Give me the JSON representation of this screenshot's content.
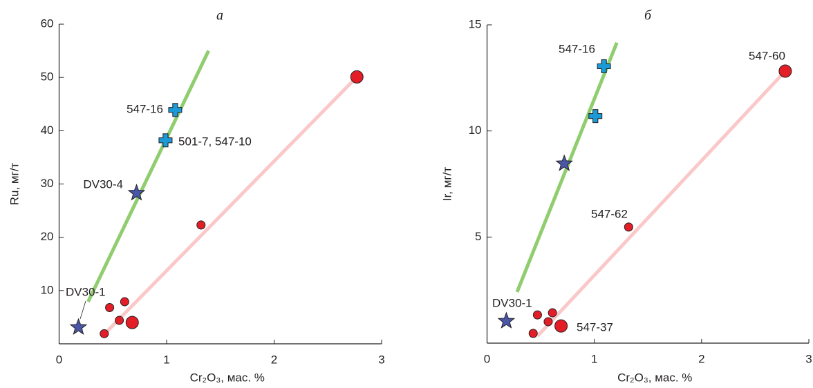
{
  "chart_data": [
    {
      "type": "scatter",
      "title": "а",
      "x_label": "Cr₂O₃, мас. %",
      "y_label": "Ru, мг/т",
      "xlim": [
        0,
        3
      ],
      "ylim": [
        0,
        60
      ],
      "xticks": [
        0,
        1,
        2,
        3
      ],
      "yticks": [
        10,
        20,
        30,
        40,
        50,
        60
      ],
      "series": [
        {
          "marker": "line",
          "color": "#8fcd6f",
          "x": [
            0.27,
            1.39
          ],
          "values": [
            7.9,
            55
          ]
        },
        {
          "marker": "line",
          "color": "#fac8c8",
          "x": [
            0.4,
            2.77
          ],
          "values": [
            1.4,
            50.1
          ]
        },
        {
          "marker": "circle",
          "color": "#e41e26",
          "x": [
            1.32,
            0.47,
            0.61,
            0.56,
            0.42
          ],
          "values": [
            22.3,
            6.8,
            7.9,
            4.4,
            1.9
          ]
        },
        {
          "marker": "circle-large",
          "color": "#e41e26",
          "x": [
            2.77,
            0.68
          ],
          "values": [
            50.1,
            4.0
          ]
        },
        {
          "marker": "cross",
          "color": "#1b9ad6",
          "x": [
            1.08,
            0.99
          ],
          "values": [
            43.9,
            38.2
          ]
        },
        {
          "marker": "star",
          "color": "#4a56a6",
          "x": [
            0.18,
            0.72
          ],
          "values": [
            3.1,
            28.3
          ]
        }
      ],
      "annotations": [
        "547-16",
        "501-7, 547-10",
        "DV30-4",
        "DV30-1"
      ]
    },
    {
      "type": "scatter",
      "title": "б",
      "x_label": "Cr₂O₃, мас. %",
      "y_label": "Ir, мг/т",
      "xlim": [
        0,
        3
      ],
      "ylim": [
        0,
        15
      ],
      "xticks": [
        0,
        1,
        2,
        3
      ],
      "yticks": [
        5,
        10,
        15
      ],
      "series": [
        {
          "marker": "line",
          "color": "#8fcd6f",
          "x": [
            0.28,
            1.21
          ],
          "values": [
            2.41,
            14.16
          ]
        },
        {
          "marker": "line",
          "color": "#fac8c8",
          "x": [
            0.47,
            2.78
          ],
          "values": [
            0.33,
            12.82
          ]
        },
        {
          "marker": "circle",
          "color": "#e41e26",
          "x": [
            1.32,
            0.47,
            0.61,
            0.57,
            0.43
          ],
          "values": [
            5.47,
            1.33,
            1.43,
            1.01,
            0.46
          ]
        },
        {
          "marker": "circle-large",
          "color": "#e41e26",
          "x": [
            2.78,
            0.69
          ],
          "values": [
            12.82,
            0.81
          ]
        },
        {
          "marker": "cross",
          "color": "#1b9ad6",
          "x": [
            1.09,
            1.01
          ],
          "values": [
            13.05,
            10.7
          ]
        },
        {
          "marker": "star",
          "color": "#4a56a6",
          "x": [
            0.18,
            0.72
          ],
          "values": [
            1.04,
            8.46
          ]
        }
      ],
      "annotations": [
        "547-16",
        "547-60",
        "547-62",
        "DV30-1",
        "547-37"
      ]
    }
  ]
}
